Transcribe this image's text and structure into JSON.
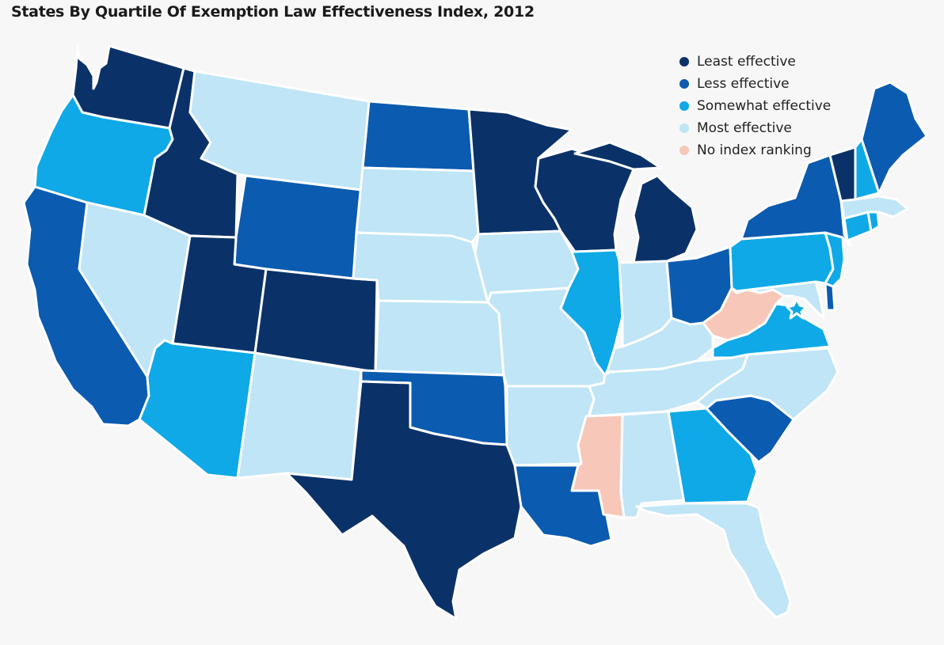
{
  "title": "States By Quartile Of Exemption Law Effectiveness Index, 2012",
  "colors": {
    "least": "#0b3268",
    "less": "#0b5bb0",
    "somewhat": "#0ea9e6",
    "most": "#bfe5f6",
    "none": "#f7c8ba"
  },
  "legend": [
    {
      "label": "Least effective",
      "key": "least"
    },
    {
      "label": "Less effective",
      "key": "less"
    },
    {
      "label": "Somewhat effective",
      "key": "somewhat"
    },
    {
      "label": "Most effective",
      "key": "most"
    },
    {
      "label": "No index ranking",
      "key": "none"
    }
  ],
  "states": {
    "WA": {
      "name": "Washington",
      "quartile": "least"
    },
    "OR": {
      "name": "Oregon",
      "quartile": "somewhat"
    },
    "CA": {
      "name": "California",
      "quartile": "less"
    },
    "ID": {
      "name": "Idaho",
      "quartile": "least"
    },
    "NV": {
      "name": "Nevada",
      "quartile": "most"
    },
    "MT": {
      "name": "Montana",
      "quartile": "most"
    },
    "WY": {
      "name": "Wyoming",
      "quartile": "less"
    },
    "UT": {
      "name": "Utah",
      "quartile": "least"
    },
    "AZ": {
      "name": "Arizona",
      "quartile": "somewhat"
    },
    "CO": {
      "name": "Colorado",
      "quartile": "least"
    },
    "NM": {
      "name": "New Mexico",
      "quartile": "most"
    },
    "ND": {
      "name": "North Dakota",
      "quartile": "less"
    },
    "SD": {
      "name": "South Dakota",
      "quartile": "most"
    },
    "NE": {
      "name": "Nebraska",
      "quartile": "most"
    },
    "KS": {
      "name": "Kansas",
      "quartile": "most"
    },
    "OK": {
      "name": "Oklahoma",
      "quartile": "less"
    },
    "TX": {
      "name": "Texas",
      "quartile": "least"
    },
    "MN": {
      "name": "Minnesota",
      "quartile": "least"
    },
    "IA": {
      "name": "Iowa",
      "quartile": "most"
    },
    "MO": {
      "name": "Missouri",
      "quartile": "most"
    },
    "AR": {
      "name": "Arkansas",
      "quartile": "most"
    },
    "LA": {
      "name": "Louisiana",
      "quartile": "less"
    },
    "WI": {
      "name": "Wisconsin",
      "quartile": "least"
    },
    "MI": {
      "name": "Michigan",
      "quartile": "least"
    },
    "IL": {
      "name": "Illinois",
      "quartile": "somewhat"
    },
    "IN": {
      "name": "Indiana",
      "quartile": "most"
    },
    "OH": {
      "name": "Ohio",
      "quartile": "less"
    },
    "KY": {
      "name": "Kentucky",
      "quartile": "most"
    },
    "TN": {
      "name": "Tennessee",
      "quartile": "most"
    },
    "MS": {
      "name": "Mississippi",
      "quartile": "none"
    },
    "AL": {
      "name": "Alabama",
      "quartile": "most"
    },
    "GA": {
      "name": "Georgia",
      "quartile": "somewhat"
    },
    "FL": {
      "name": "Florida",
      "quartile": "most"
    },
    "SC": {
      "name": "South Carolina",
      "quartile": "less"
    },
    "NC": {
      "name": "North Carolina",
      "quartile": "most"
    },
    "VA": {
      "name": "Virginia",
      "quartile": "somewhat"
    },
    "WV": {
      "name": "West Virginia",
      "quartile": "none"
    },
    "PA": {
      "name": "Pennsylvania",
      "quartile": "somewhat"
    },
    "NY": {
      "name": "New York",
      "quartile": "less"
    },
    "NJ": {
      "name": "New Jersey",
      "quartile": "somewhat"
    },
    "DE": {
      "name": "Delaware",
      "quartile": "less"
    },
    "MD": {
      "name": "Maryland",
      "quartile": "most"
    },
    "DC": {
      "name": "District of Columbia",
      "quartile": "somewhat"
    },
    "CT": {
      "name": "Connecticut",
      "quartile": "somewhat"
    },
    "RI": {
      "name": "Rhode Island",
      "quartile": "somewhat"
    },
    "MA": {
      "name": "Massachusetts",
      "quartile": "most"
    },
    "VT": {
      "name": "Vermont",
      "quartile": "least"
    },
    "NH": {
      "name": "New Hampshire",
      "quartile": "somewhat"
    },
    "ME": {
      "name": "Maine",
      "quartile": "less"
    }
  }
}
